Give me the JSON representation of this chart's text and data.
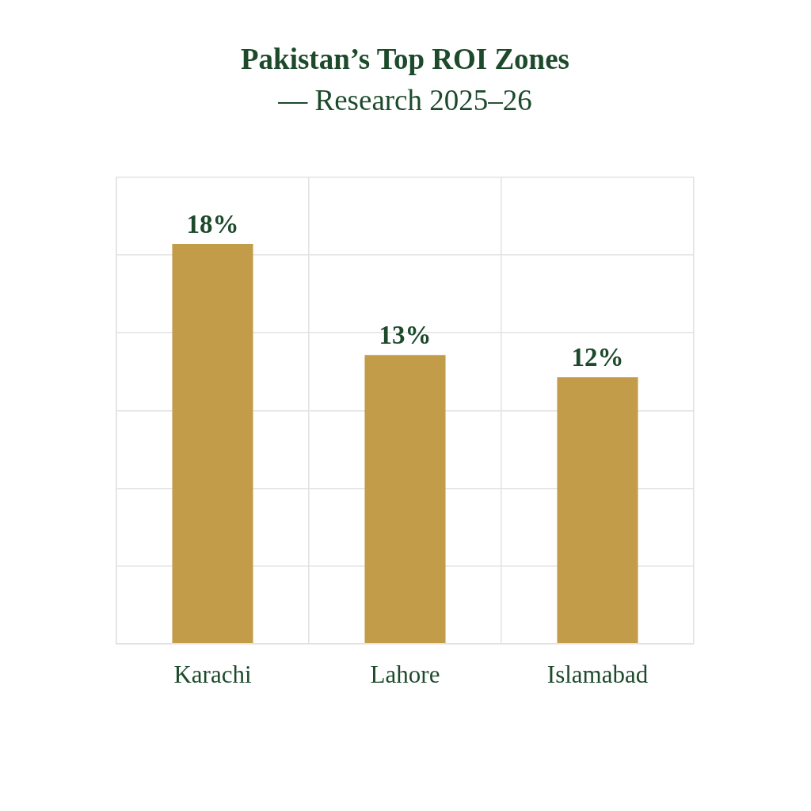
{
  "chart_data": {
    "type": "bar",
    "title": "Pakistan’s Top ROI Zones",
    "subtitle": "— Research 2025–26",
    "categories": [
      "Karachi",
      "Lahore",
      "Islamabad"
    ],
    "values": [
      18,
      13,
      12
    ],
    "value_labels": [
      "18%",
      "13%",
      "12%"
    ],
    "color": "#c29c48",
    "ylim": [
      0,
      21
    ],
    "yticks": [
      {
        "value": 0,
        "label": null
      },
      {
        "value": 3.5,
        "label": null
      },
      {
        "value": 7,
        "label": null
      },
      {
        "value": 10.5,
        "label": null
      },
      {
        "value": 14,
        "label": null
      },
      {
        "value": 17.5,
        "label": null
      },
      {
        "value": 21,
        "label": null
      }
    ],
    "grid": true,
    "tick_labels": "x"
  }
}
